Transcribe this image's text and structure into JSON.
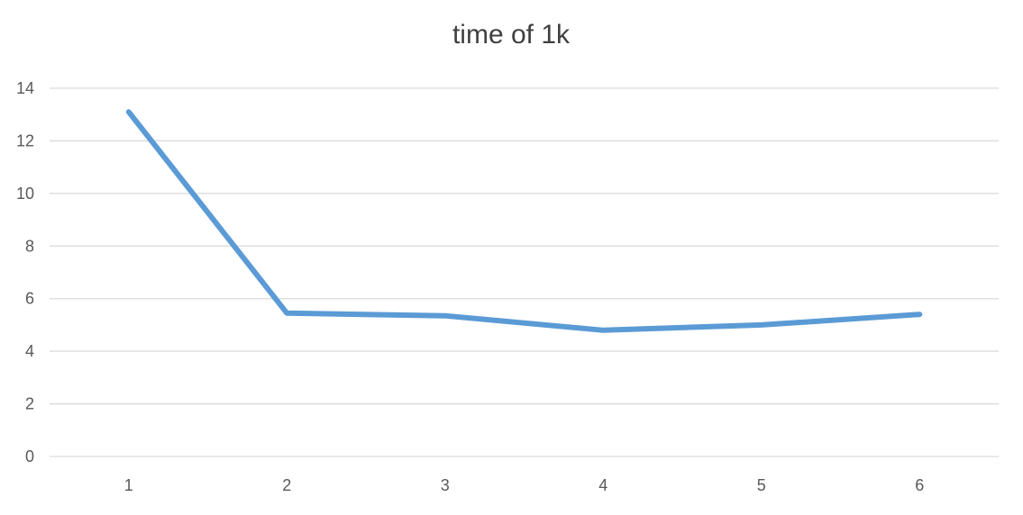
{
  "chart_data": {
    "type": "line",
    "title": "time of 1k",
    "xlabel": "",
    "ylabel": "",
    "categories": [
      "1",
      "2",
      "3",
      "4",
      "5",
      "6"
    ],
    "series": [
      {
        "values": [
          13.1,
          5.45,
          5.35,
          4.8,
          5.0,
          5.4
        ]
      }
    ],
    "ylim": [
      0,
      14
    ],
    "yticks": [
      "0",
      "2",
      "4",
      "6",
      "8",
      "10",
      "12",
      "14"
    ],
    "grid": true,
    "legend": "none"
  },
  "colors": {
    "line": "#5b9bd5",
    "grid": "#d9d9d9",
    "text": "#595959",
    "title": "#404040"
  }
}
